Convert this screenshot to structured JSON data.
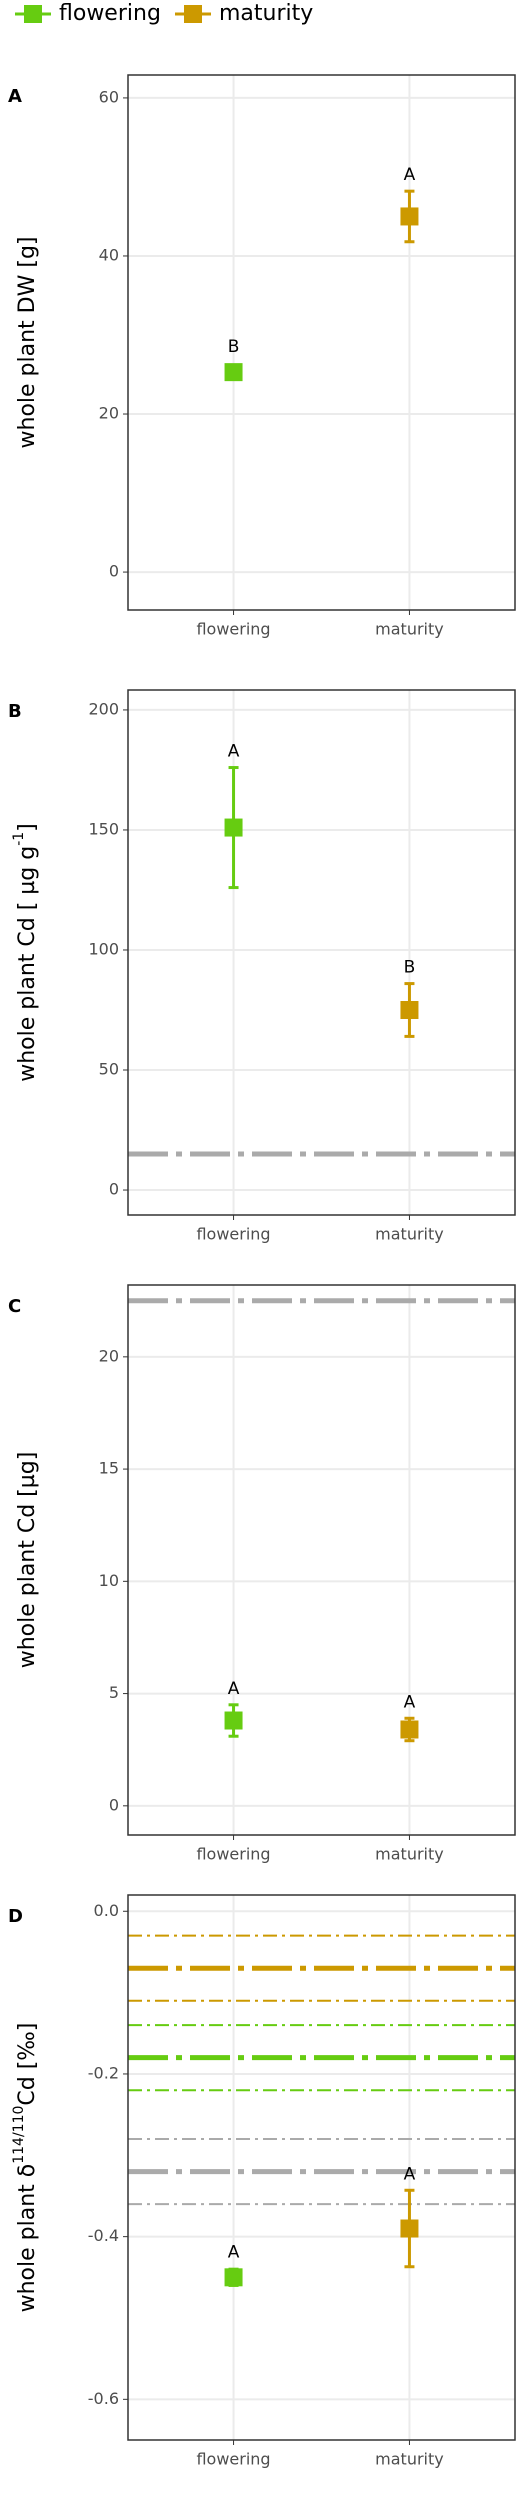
{
  "chart_data": [
    {
      "type": "scatter",
      "panel_label": "A",
      "y_label": {
        "text": "whole plant DW [g]"
      },
      "categories": [
        "flowering",
        "maturity"
      ],
      "series": [
        {
          "name": "flowering",
          "color": "#66cc11",
          "values": [
            25.3,
            null
          ],
          "errors": [
            0.9,
            null
          ],
          "letters": [
            "B",
            null
          ]
        },
        {
          "name": "maturity",
          "color": "#cc9900",
          "values": [
            null,
            45
          ],
          "errors": [
            null,
            3.2
          ],
          "letters": [
            null,
            "A"
          ]
        }
      ],
      "ylim": [
        -4.8,
        62.9
      ],
      "yticks": [
        0,
        20,
        40,
        60
      ],
      "grid": true,
      "reference_lines": []
    },
    {
      "type": "scatter",
      "panel_label": "B",
      "y_label": {
        "text": "whole plant Cd [ µg g",
        "sup": "-1",
        "after": "]"
      },
      "categories": [
        "flowering",
        "maturity"
      ],
      "series": [
        {
          "name": "flowering",
          "color": "#66cc11",
          "values": [
            151,
            null
          ],
          "errors": [
            25,
            null
          ],
          "letters": [
            "A",
            null
          ]
        },
        {
          "name": "maturity",
          "color": "#cc9900",
          "values": [
            null,
            75
          ],
          "errors": [
            null,
            11
          ],
          "letters": [
            null,
            "B"
          ]
        }
      ],
      "ylim": [
        -10.4,
        208.3
      ],
      "yticks": [
        0,
        50,
        100,
        150,
        200
      ],
      "grid": true,
      "reference_lines": [
        {
          "value": 15,
          "color": "#aaaaaa",
          "style": "dashed"
        }
      ]
    },
    {
      "type": "scatter",
      "panel_label": "C",
      "y_label": {
        "text": "whole plant Cd [µg]"
      },
      "categories": [
        "flowering",
        "maturity"
      ],
      "series": [
        {
          "name": "flowering",
          "color": "#66cc11",
          "values": [
            3.8,
            null
          ],
          "errors": [
            0.7,
            null
          ],
          "letters": [
            "A",
            null
          ]
        },
        {
          "name": "maturity",
          "color": "#cc9900",
          "values": [
            null,
            3.4
          ],
          "errors": [
            null,
            0.5
          ],
          "letters": [
            null,
            "A"
          ]
        }
      ],
      "ylim": [
        -1.3,
        23.2
      ],
      "yticks": [
        0,
        5,
        10,
        15,
        20
      ],
      "grid": true,
      "reference_lines": [
        {
          "value": 22.5,
          "color": "#aaaaaa",
          "style": "dashed"
        }
      ]
    },
    {
      "type": "scatter",
      "panel_label": "D",
      "y_label": {
        "text": "whole plant δ",
        "sup": "114/110",
        "after": "Cd [‰]"
      },
      "categories": [
        "flowering",
        "maturity"
      ],
      "series": [
        {
          "name": "flowering",
          "color": "#66cc11",
          "values": [
            -0.45,
            null
          ],
          "errors": [
            0.01,
            null
          ],
          "letters": [
            "A",
            null
          ]
        },
        {
          "name": "maturity",
          "color": "#cc9900",
          "values": [
            null,
            -0.39
          ],
          "errors": [
            null,
            0.047
          ],
          "letters": [
            null,
            "A"
          ]
        }
      ],
      "ylim": [
        -0.65,
        0.02
      ],
      "yticks": [
        {
          "value": 0,
          "label": "0.0"
        },
        -0.2,
        -0.4,
        -0.6
      ],
      "grid": true,
      "reference_lines": [
        {
          "value": -0.03,
          "color": "#cc9900",
          "style": "dotdash"
        },
        {
          "value": -0.07,
          "color": "#cc9900",
          "style": "dashed"
        },
        {
          "value": -0.11,
          "color": "#cc9900",
          "style": "dotdash"
        },
        {
          "value": -0.14,
          "color": "#66cc11",
          "style": "dotdash"
        },
        {
          "value": -0.18,
          "color": "#66cc11",
          "style": "dashed"
        },
        {
          "value": -0.22,
          "color": "#66cc11",
          "style": "dotdash"
        },
        {
          "value": -0.28,
          "color": "#aaaaaa",
          "style": "dotdash"
        },
        {
          "value": -0.32,
          "color": "#aaaaaa",
          "style": "dashed"
        },
        {
          "value": -0.36,
          "color": "#aaaaaa",
          "style": "dotdash"
        }
      ]
    }
  ]
}
